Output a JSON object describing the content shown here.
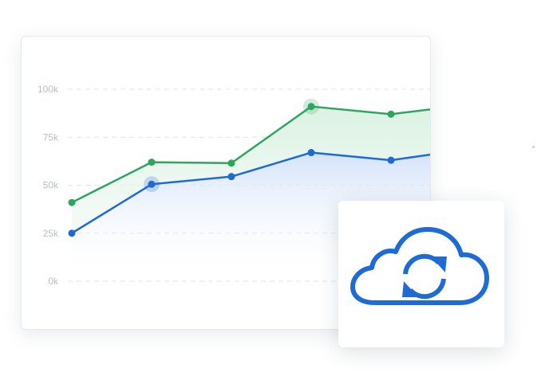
{
  "chart_data": {
    "type": "area",
    "categories": [
      "",
      "",
      "",
      "",
      "",
      ""
    ],
    "y_ticks": [
      "100k",
      "75k",
      "50k",
      "25k",
      "0k"
    ],
    "ylim": [
      0,
      100000
    ],
    "grid": true,
    "series": [
      {
        "values": [
          41000,
          62000,
          61500,
          91000,
          87000,
          92000
        ],
        "color": "#2ea55f",
        "fill": "#e3f4e8"
      },
      {
        "values": [
          25000,
          50500,
          54500,
          67000,
          63000,
          69000
        ],
        "color": "#1e6bd6",
        "fill": "#dbe7fb"
      }
    ],
    "highlighted_points": [
      {
        "series": 1,
        "index": 1
      },
      {
        "series": 0,
        "index": 3
      }
    ]
  },
  "icons": {
    "cloud_sync": {
      "name": "cloud-sync-icon",
      "color": "#1e6bd6"
    }
  }
}
